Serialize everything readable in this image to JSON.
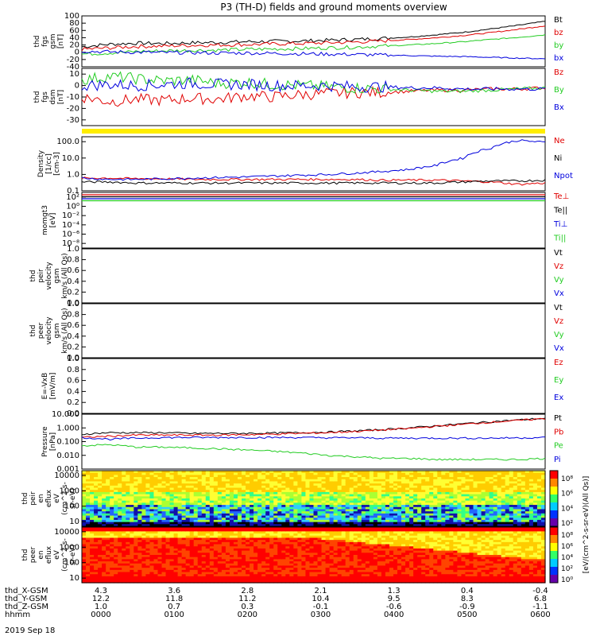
{
  "title": "P3 (TH-D) fields and ground moments overview",
  "date_label": "2019 Sep 18",
  "colors": {
    "black": "#000000",
    "red": "#e00000",
    "green": "#22cc22",
    "blue": "#0000dd",
    "yellow": "#ffee00"
  },
  "x_axis": {
    "rows": [
      {
        "label": "thd_X-GSM",
        "values": [
          "4.3",
          "3.6",
          "2.8",
          "2.1",
          "1.3",
          "0.4",
          "-0.4"
        ]
      },
      {
        "label": "thd_Y-GSM",
        "values": [
          "12.2",
          "11.8",
          "11.2",
          "10.4",
          "9.5",
          "8.3",
          "6.8"
        ]
      },
      {
        "label": "thd_Z-GSM",
        "values": [
          "1.0",
          "0.7",
          "0.3",
          "-0.1",
          "-0.6",
          "-0.9",
          "-1.1"
        ]
      },
      {
        "label": "hhmm",
        "values": [
          "0000",
          "0100",
          "0200",
          "0300",
          "0400",
          "0500",
          "0600"
        ]
      }
    ]
  },
  "chart_data": [
    {
      "type": "line",
      "ylabel": [
        "thd",
        "fgs",
        "gsm",
        "[nT]"
      ],
      "ylim": [
        -40,
        100
      ],
      "yticks": [
        "100",
        "80",
        "60",
        "40",
        "20",
        "0",
        "-20",
        "-40"
      ],
      "series": [
        {
          "name": "Bt",
          "color": "#000000",
          "values": [
            15,
            22,
            25,
            24,
            26,
            27,
            29,
            30,
            31,
            33,
            35,
            38,
            42,
            48,
            55,
            64,
            74,
            85
          ]
        },
        {
          "name": "bz",
          "color": "#e00000",
          "values": [
            8,
            12,
            16,
            17,
            19,
            20,
            21,
            23,
            24,
            26,
            28,
            31,
            35,
            40,
            46,
            54,
            63,
            73
          ]
        },
        {
          "name": "by",
          "color": "#22cc22",
          "values": [
            -5,
            -2,
            2,
            4,
            5,
            6,
            8,
            9,
            10,
            12,
            14,
            17,
            20,
            24,
            29,
            35,
            41,
            48
          ]
        },
        {
          "name": "bx",
          "color": "#0000dd",
          "values": [
            3,
            1,
            0,
            -1,
            -1,
            -2,
            -2,
            -3,
            -4,
            -5,
            -6,
            -8,
            -9,
            -11,
            -12,
            -14,
            -16,
            -18
          ]
        }
      ]
    },
    {
      "type": "line",
      "ylabel": [
        "thd",
        "fgs",
        "dsm",
        "[nT]"
      ],
      "ylim": [
        -35,
        15
      ],
      "yticks": [
        "10",
        "0",
        "-10",
        "-20",
        "-30"
      ],
      "series": [
        {
          "name": "Bz",
          "color": "#e00000",
          "values": [
            -10,
            -14,
            -12,
            -13,
            -11,
            -12,
            -9,
            -10,
            -8,
            -7,
            -6,
            -6,
            -5,
            -4,
            -4,
            -3,
            -3,
            -2
          ]
        },
        {
          "name": "By",
          "color": "#22cc22",
          "values": [
            5,
            8,
            6,
            4,
            5,
            2,
            3,
            1,
            0,
            -1,
            -2,
            -3,
            -4,
            -5,
            -5,
            -4,
            -3,
            -2
          ]
        },
        {
          "name": "Bx",
          "color": "#0000dd",
          "values": [
            0,
            1,
            0,
            1,
            2,
            1,
            1,
            0,
            0,
            0,
            -1,
            -1,
            -2,
            -2,
            -3,
            -3,
            -3,
            -3
          ]
        }
      ]
    },
    {
      "type": "line",
      "ylabel": [
        "Density",
        "[1/cc]",
        "[cm-3]"
      ],
      "log": true,
      "ylim": [
        0.1,
        200
      ],
      "yticks": [
        "100.0",
        "10.0",
        "1.0",
        "0.1"
      ],
      "series": [
        {
          "name": "Ne",
          "color": "#e00000",
          "values": [
            0.6,
            0.6,
            0.55,
            0.55,
            0.5,
            0.5,
            0.5,
            0.5,
            0.5,
            0.5,
            0.5,
            0.45,
            0.45,
            0.45,
            0.4,
            0.35,
            0.25,
            0.3
          ]
        },
        {
          "name": "Ni",
          "color": "#000000",
          "values": [
            0.35,
            0.35,
            0.3,
            0.3,
            0.3,
            0.3,
            0.3,
            0.3,
            0.3,
            0.3,
            0.3,
            0.3,
            0.3,
            0.3,
            0.35,
            0.4,
            0.4,
            0.45
          ]
        },
        {
          "name": "Npot",
          "color": "#0000dd",
          "values": [
            0.6,
            0.5,
            0.5,
            0.55,
            0.6,
            0.65,
            0.7,
            0.8,
            0.9,
            1.0,
            1.2,
            1.5,
            2.0,
            3.5,
            10,
            40,
            120,
            90
          ]
        }
      ]
    },
    {
      "type": "line",
      "ylabel": [
        "momgt3",
        "[eV]"
      ],
      "log": true,
      "ylim_exp": [
        -8,
        4
      ],
      "yticks": [
        "10²",
        "10⁰",
        "10⁻²",
        "10⁻⁴",
        "10⁻⁶",
        "10⁻⁸"
      ],
      "series": [
        {
          "name": "Te⊥",
          "color": "#e00000"
        },
        {
          "name": "Te||",
          "color": "#000000"
        },
        {
          "name": "Ti⊥",
          "color": "#0000dd"
        },
        {
          "name": "Ti||",
          "color": "#22cc22"
        }
      ]
    },
    {
      "type": "line",
      "ylabel": [
        "thd",
        "peir",
        "velocity",
        "gsm",
        "km/s (All Qs)"
      ],
      "ylim": [
        0,
        1
      ],
      "yticks": [
        "1.0",
        "0.8",
        "0.6",
        "0.4",
        "0.2",
        "0.0"
      ],
      "series": [
        {
          "name": "Vt",
          "color": "#000000"
        },
        {
          "name": "Vz",
          "color": "#e00000"
        },
        {
          "name": "Vy",
          "color": "#22cc22"
        },
        {
          "name": "Vx",
          "color": "#0000dd"
        }
      ]
    },
    {
      "type": "line",
      "ylabel": [
        "thd",
        "peer",
        "velocity",
        "gsm",
        "km/s (All Qs)"
      ],
      "ylim": [
        0,
        1
      ],
      "yticks": [
        "1.0",
        "0.8",
        "0.6",
        "0.4",
        "0.2",
        "0.0"
      ],
      "series": [
        {
          "name": "Vt",
          "color": "#000000"
        },
        {
          "name": "Vz",
          "color": "#e00000"
        },
        {
          "name": "Vy",
          "color": "#22cc22"
        },
        {
          "name": "Vx",
          "color": "#0000dd"
        }
      ]
    },
    {
      "type": "line",
      "ylabel": [
        "E=-VxB",
        "[mV/m]"
      ],
      "ylim": [
        0,
        1
      ],
      "yticks": [
        "1.0",
        "0.8",
        "0.6",
        "0.4",
        "0.2",
        "0.0"
      ],
      "series": [
        {
          "name": "Ez",
          "color": "#e00000"
        },
        {
          "name": "Ey",
          "color": "#22cc22"
        },
        {
          "name": "Ex",
          "color": "#0000dd"
        }
      ]
    },
    {
      "type": "line",
      "ylabel": [
        "Pressure",
        "[nPa]"
      ],
      "log": true,
      "ylim": [
        0.001,
        10
      ],
      "yticks": [
        "10.000",
        "1.000",
        "0.100",
        "0.010",
        "0.001"
      ],
      "series": [
        {
          "name": "Pt",
          "color": "#000000",
          "values": [
            0.35,
            0.45,
            0.45,
            0.45,
            0.4,
            0.4,
            0.4,
            0.42,
            0.45,
            0.5,
            0.6,
            0.75,
            1.0,
            1.4,
            2.0,
            2.8,
            3.8,
            5.0
          ]
        },
        {
          "name": "Pb",
          "color": "#e00000",
          "values": [
            0.2,
            0.25,
            0.3,
            0.3,
            0.3,
            0.3,
            0.32,
            0.35,
            0.4,
            0.45,
            0.55,
            0.7,
            0.9,
            1.3,
            1.8,
            2.6,
            3.5,
            4.8
          ]
        },
        {
          "name": "Pe",
          "color": "#22cc22",
          "values": [
            0.05,
            0.06,
            0.04,
            0.04,
            0.035,
            0.03,
            0.025,
            0.02,
            0.015,
            0.01,
            0.008,
            0.006,
            0.006,
            0.005,
            0.005,
            0.005,
            0.005,
            0.006
          ]
        },
        {
          "name": "Pi",
          "color": "#0000dd",
          "values": [
            0.2,
            0.15,
            0.18,
            0.2,
            0.2,
            0.2,
            0.2,
            0.2,
            0.2,
            0.19,
            0.19,
            0.18,
            0.18,
            0.18,
            0.18,
            0.18,
            0.19,
            0.2
          ]
        }
      ]
    },
    {
      "type": "heatmap",
      "ylabel": [
        "thd",
        "peir",
        "en",
        "eflux",
        "eV",
        "(cm^2-s-",
        "sr-eV)"
      ],
      "log": true,
      "ylim": [
        5,
        20000
      ],
      "yticks": [
        "10000",
        "1000",
        "100",
        "10"
      ]
    },
    {
      "type": "heatmap",
      "ylabel": [
        "thd",
        "peer",
        "en",
        "eflux",
        "eV",
        "(cm^2-s-",
        "sr-eV)"
      ],
      "log": true,
      "ylim": [
        5,
        20000
      ],
      "yticks": [
        "10000",
        "1000",
        "100",
        "10"
      ]
    }
  ],
  "colorbars": [
    {
      "ticks": [
        "10⁸",
        "10⁶",
        "10⁴",
        "10²"
      ]
    },
    {
      "ticks": [
        "10⁸",
        "10⁶",
        "10⁴",
        "10²",
        "10⁰"
      ]
    }
  ],
  "colorbar_label": "[eV/(cm^2-s-sr-eV)(All Qs)]"
}
